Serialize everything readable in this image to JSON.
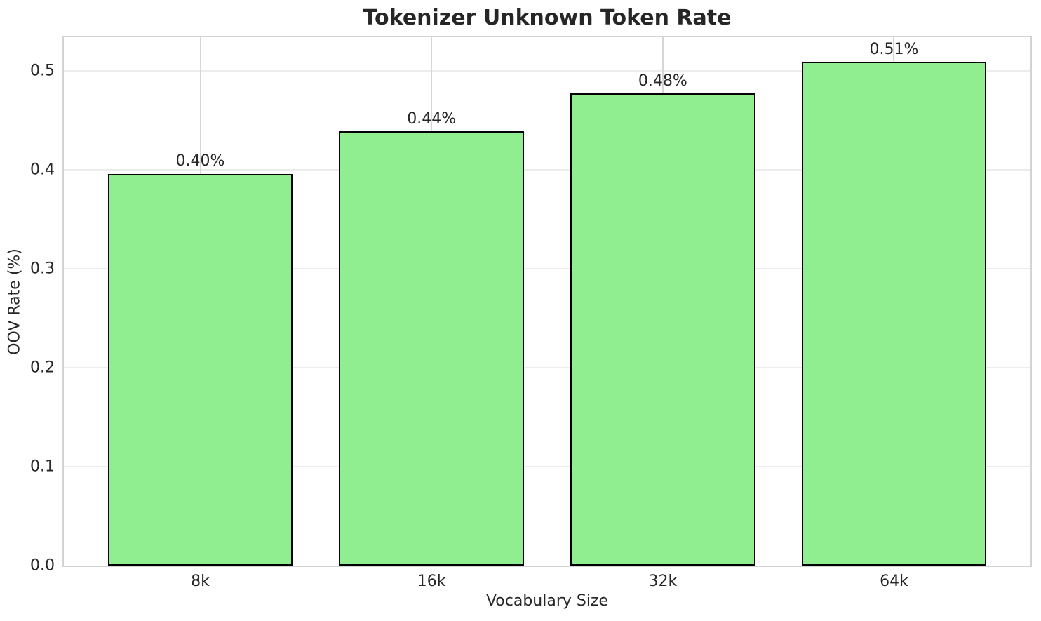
{
  "figure": {
    "title": "Tokenizer Unknown Token Rate"
  },
  "chart_data": {
    "type": "bar",
    "title": "Tokenizer Unknown Token Rate",
    "categories": [
      "8k",
      "16k",
      "32k",
      "64k"
    ],
    "values": [
      0.396,
      0.439,
      0.477,
      0.509
    ],
    "bar_labels": [
      "0.40%",
      "0.44%",
      "0.48%",
      "0.51%"
    ],
    "xlabel": "Vocabulary Size",
    "ylabel": "OOV Rate (%)",
    "ylim": [
      0,
      0.534
    ],
    "yticks": [
      0.0,
      0.1,
      0.2,
      0.3,
      0.4,
      0.5
    ],
    "ytick_labels": [
      "0.0",
      "0.1",
      "0.2",
      "0.3",
      "0.4",
      "0.5"
    ],
    "grid": true,
    "legend": false,
    "colors": {
      "bar_fill": "#90EE90",
      "bar_edge": "#000000",
      "grid_horizontal": "#ECECEC",
      "grid_vertical": "#D6D6D6",
      "spine": "#D3D3D3",
      "text": "#262626",
      "background": "#FFFFFF"
    }
  }
}
